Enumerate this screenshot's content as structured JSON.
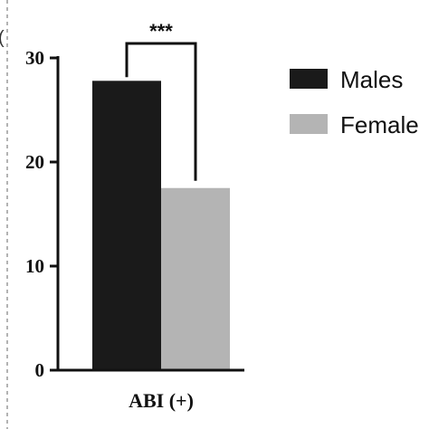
{
  "chart_data": {
    "type": "bar",
    "categories": [
      "ABI (+)"
    ],
    "series": [
      {
        "name": "Males",
        "values": [
          27.8
        ],
        "color": "#1a1a1a"
      },
      {
        "name": "Female",
        "values": [
          17.5
        ],
        "color": "#b4b4b4"
      }
    ],
    "ylim": [
      0,
      30
    ],
    "yticks": [
      "0",
      "10",
      "20",
      "30"
    ],
    "ytick_values": [
      0,
      10,
      20,
      30
    ],
    "significance": "***",
    "legend_position": "top-right",
    "grid": false,
    "panel_mark": "("
  }
}
